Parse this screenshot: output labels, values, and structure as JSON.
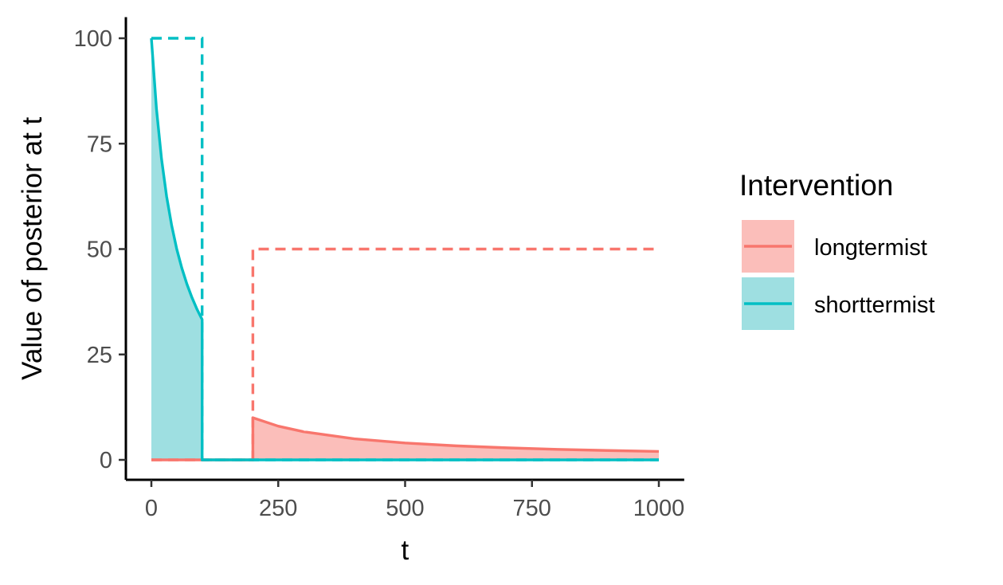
{
  "chart_data": {
    "type": "area",
    "title": "",
    "xlabel": "t",
    "ylabel": "Value of posterior at t",
    "xlim": [
      -50,
      1050
    ],
    "ylim": [
      -5,
      105
    ],
    "x_ticks": [
      0,
      250,
      500,
      750,
      1000
    ],
    "y_ticks": [
      0,
      25,
      50,
      75,
      100
    ],
    "x_tick_labels": [
      "0",
      "250",
      "500",
      "750",
      "1000"
    ],
    "y_tick_labels": [
      "0",
      "25",
      "50",
      "75",
      "100"
    ],
    "grid": false,
    "legend": {
      "title": "Intervention",
      "position": "right",
      "entries": [
        "longtermist",
        "shorttermist"
      ]
    },
    "series": [
      {
        "name": "longtermist",
        "color": "#F8766D",
        "fill": "#FBBEBA",
        "prior": {
          "style": "dashed",
          "x": [
            0,
            200,
            200,
            1000
          ],
          "y": [
            0,
            0,
            50,
            50
          ]
        },
        "posterior": {
          "style": "solid",
          "x": [
            0,
            200,
            200,
            250,
            300,
            400,
            500,
            600,
            700,
            800,
            900,
            1000
          ],
          "y": [
            0,
            0,
            10,
            8.0,
            6.67,
            5.0,
            4.0,
            3.33,
            2.86,
            2.5,
            2.22,
            2.0
          ]
        }
      },
      {
        "name": "shorttermist",
        "color": "#00BFC4",
        "fill": "#9EDFE1",
        "prior": {
          "style": "dashed",
          "x": [
            0,
            100,
            100,
            1000
          ],
          "y": [
            100,
            100,
            0,
            0
          ]
        },
        "posterior": {
          "style": "solid",
          "x": [
            0,
            10,
            20,
            30,
            40,
            50,
            60,
            70,
            80,
            90,
            100,
            100,
            1000
          ],
          "y": [
            100,
            83.3,
            71.4,
            62.5,
            55.6,
            50.0,
            45.5,
            41.7,
            38.5,
            35.7,
            33.3,
            0,
            0
          ]
        }
      }
    ]
  }
}
